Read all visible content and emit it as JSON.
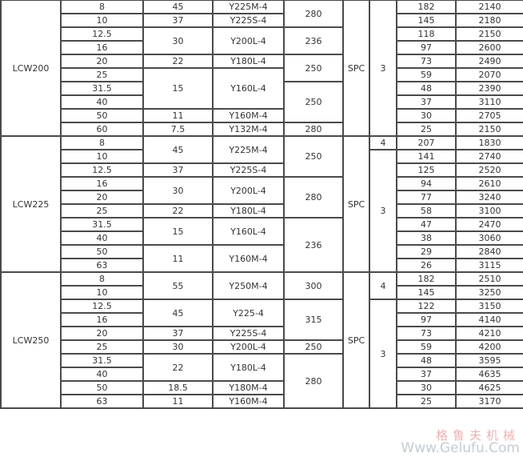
{
  "groups": [
    {
      "model": "LCW200",
      "ratio": [
        "8",
        "10",
        "12.5",
        "16",
        "20",
        "25",
        "31.5",
        "40",
        "50",
        "60"
      ],
      "power": [
        {
          "value": "45",
          "rows": 1
        },
        {
          "value": "37",
          "rows": 1
        },
        {
          "value": "30",
          "rows": 2
        },
        {
          "value": "22",
          "rows": 1
        },
        {
          "value": "15",
          "rows": 3
        },
        {
          "value": "11",
          "rows": 1
        },
        {
          "value": "7.5",
          "rows": 1
        }
      ],
      "motor": [
        {
          "value": "Y225M-4",
          "rows": 1
        },
        {
          "value": "Y225S-4",
          "rows": 1
        },
        {
          "value": "Y200L-4",
          "rows": 2
        },
        {
          "value": "Y180L-4",
          "rows": 1
        },
        {
          "value": "Y160L-4",
          "rows": 3
        },
        {
          "value": "Y160M-4",
          "rows": 1
        },
        {
          "value": "Y132M-4",
          "rows": 1
        }
      ],
      "size": [
        {
          "value": "280",
          "rows": 2
        },
        {
          "value": "236",
          "rows": 2
        },
        {
          "value": "250",
          "rows": 2
        },
        {
          "value": "250",
          "rows": 3
        },
        {
          "value": "280",
          "rows": 1
        }
      ],
      "belt": [
        {
          "value": "SPC",
          "rows": 10
        }
      ],
      "count": [
        {
          "value": "3",
          "rows": 10
        }
      ],
      "speed": [
        "182",
        "145",
        "118",
        "97",
        "73",
        "59",
        "48",
        "37",
        "30",
        "25"
      ],
      "value": [
        "2140",
        "2180",
        "2150",
        "2600",
        "2490",
        "2070",
        "2390",
        "3110",
        "2705",
        "2150"
      ]
    },
    {
      "model": "LCW225",
      "ratio": [
        "8",
        "10",
        "12.5",
        "16",
        "20",
        "25",
        "31.5",
        "40",
        "50",
        "63"
      ],
      "power": [
        {
          "value": "45",
          "rows": 2
        },
        {
          "value": "37",
          "rows": 1
        },
        {
          "value": "30",
          "rows": 2
        },
        {
          "value": "22",
          "rows": 1
        },
        {
          "value": "15",
          "rows": 2
        },
        {
          "value": "11",
          "rows": 2
        }
      ],
      "motor": [
        {
          "value": "Y225M-4",
          "rows": 2
        },
        {
          "value": "Y225S-4",
          "rows": 1
        },
        {
          "value": "Y200L-4",
          "rows": 2
        },
        {
          "value": "Y180L-4",
          "rows": 1
        },
        {
          "value": "Y160L-4",
          "rows": 2
        },
        {
          "value": "Y160M-4",
          "rows": 2
        }
      ],
      "size": [
        {
          "value": "250",
          "rows": 3
        },
        {
          "value": "280",
          "rows": 3
        },
        {
          "value": "236",
          "rows": 4
        }
      ],
      "belt": [
        {
          "value": "SPC",
          "rows": 10
        }
      ],
      "count": [
        {
          "value": "4",
          "rows": 1
        },
        {
          "value": "3",
          "rows": 9
        }
      ],
      "speed": [
        "207",
        "141",
        "125",
        "94",
        "77",
        "58",
        "47",
        "38",
        "29",
        "26"
      ],
      "value": [
        "1830",
        "2740",
        "2520",
        "2610",
        "3240",
        "3100",
        "2470",
        "3060",
        "2840",
        "3115"
      ]
    },
    {
      "model": "LCW250",
      "ratio": [
        "8",
        "10",
        "12.5",
        "16",
        "20",
        "25",
        "31.5",
        "40",
        "50",
        "63"
      ],
      "power": [
        {
          "value": "55",
          "rows": 2
        },
        {
          "value": "45",
          "rows": 2
        },
        {
          "value": "37",
          "rows": 1
        },
        {
          "value": "30",
          "rows": 1
        },
        {
          "value": "22",
          "rows": 2
        },
        {
          "value": "18.5",
          "rows": 1
        },
        {
          "value": "11",
          "rows": 1
        }
      ],
      "motor": [
        {
          "value": "Y250M-4",
          "rows": 2
        },
        {
          "value": "Y225-4",
          "rows": 2
        },
        {
          "value": "Y225S-4",
          "rows": 1
        },
        {
          "value": "Y200L-4",
          "rows": 1
        },
        {
          "value": "Y180L-4",
          "rows": 2
        },
        {
          "value": "Y180M-4",
          "rows": 1
        },
        {
          "value": "Y160M-4",
          "rows": 1
        }
      ],
      "size": [
        {
          "value": "300",
          "rows": 2
        },
        {
          "value": "315",
          "rows": 3
        },
        {
          "value": "250",
          "rows": 1
        },
        {
          "value": "280",
          "rows": 4
        }
      ],
      "belt": [
        {
          "value": "SPC",
          "rows": 10
        }
      ],
      "count": [
        {
          "value": "4",
          "rows": 2
        },
        {
          "value": "3",
          "rows": 8
        }
      ],
      "speed": [
        "182",
        "145",
        "122",
        "97",
        "73",
        "59",
        "48",
        "37",
        "30",
        "25"
      ],
      "value": [
        "2510",
        "3250",
        "3150",
        "4140",
        "4210",
        "4200",
        "3595",
        "4635",
        "4625",
        "3170"
      ]
    }
  ],
  "watermark": {
    "cn": "格鲁夫机械",
    "en": "Www.Gelufu.Com"
  }
}
